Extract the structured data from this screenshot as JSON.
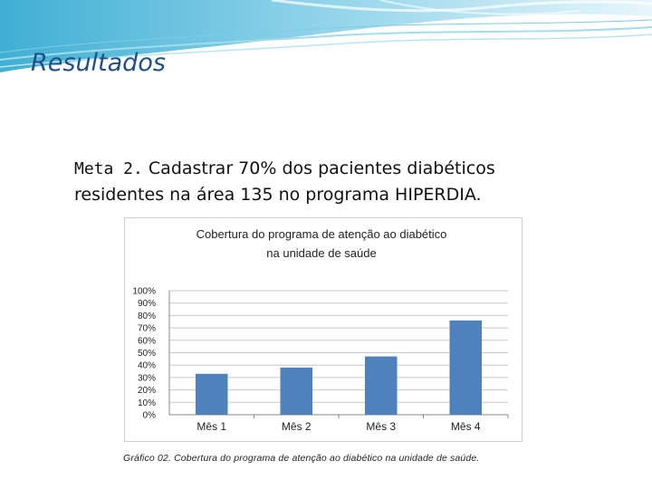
{
  "slide": {
    "heading": "Resultados",
    "goal_lead": "Meta 2.",
    "goal_text_line1": "Cadastrar 70% dos pacientes diabéticos",
    "goal_text_line2": "residentes na área 135 no programa HIPERDIA.",
    "caption": "Gráfico 02. Cobertura do programa de atenção ao diabético na unidade de saúde."
  },
  "chart_data": {
    "type": "bar",
    "title_line1": "Cobertura do programa de atenção ao  diabético",
    "title_line2": "na unidade de saúde",
    "categories": [
      "Mês 1",
      "Mês 2",
      "Mês 3",
      "Mês 4"
    ],
    "values": [
      0.33,
      0.38,
      0.47,
      0.76
    ],
    "ylim": [
      0,
      1
    ],
    "yticks": [
      "0%",
      "10%",
      "20%",
      "30%",
      "40%",
      "50%",
      "60%",
      "70%",
      "80%",
      "90%",
      "100%"
    ],
    "grid": true,
    "legend": false,
    "bar_color": "#4f81bd"
  },
  "colors": {
    "heading": "#1f4f86",
    "banner": "#5bb8d8"
  }
}
